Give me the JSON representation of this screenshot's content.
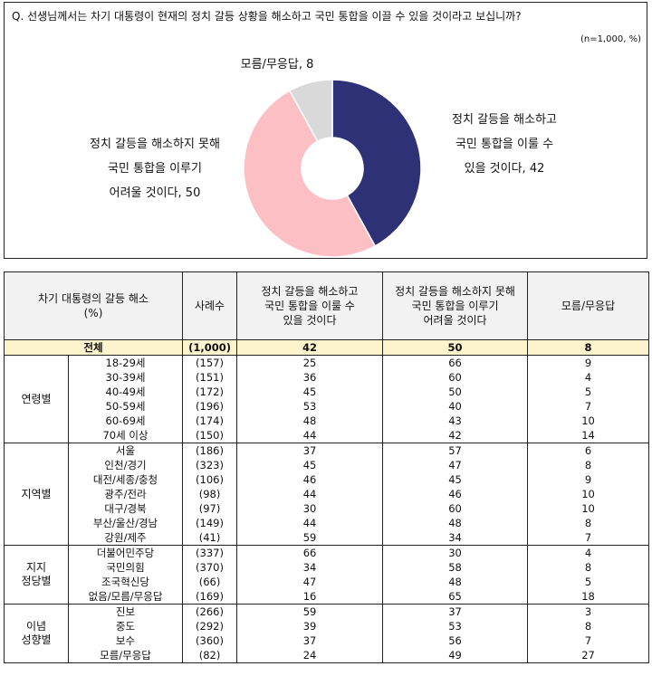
{
  "question": "Q. 선생님께서는 차기 대통령이 현재의 정치 갈등 상황을 해소하고 국민 통합을 이끌 수 있을 것이라고 보십니까?",
  "sample_note": "(n=1,000,  %)",
  "chart_data": {
    "type": "pie",
    "title": "",
    "slices": [
      {
        "label": "정치 갈등을 해소하고 국민 통합을 이룰 수 있을 것이다",
        "label_lines": [
          "정치 갈등을 해소하고",
          "국민 통합을 이룰 수",
          "있을 것이다, 42"
        ],
        "value": 42,
        "color": "#2e3175"
      },
      {
        "label": "정치 갈등을 해소하지 못해 국민 통합을 이루기 어려울 것이다",
        "label_lines": [
          "정치 갈등을 해소하지 못해",
          "국민 통합을 이루기",
          "어려울 것이다, 50"
        ],
        "value": 50,
        "color": "#fcbfc4"
      },
      {
        "label": "모름/무응답",
        "label_lines": [
          "모름/무응답, 8"
        ],
        "value": 8,
        "color": "#d9d9d9"
      }
    ]
  },
  "table": {
    "headers": [
      "차기 대통령의 갈등 해소\n(%)",
      "사례수",
      "정치 갈등을 해소하고\n국민 통합을 이룰 수\n있을 것이다",
      "정치 갈등을 해소하지 못해\n국민 통합을 이루기\n어려울 것이다",
      "모름/무응답"
    ],
    "total": {
      "label": "전체",
      "n": "(1,000)",
      "values": [
        "42",
        "50",
        "8"
      ]
    },
    "groups": [
      {
        "name": "연령별",
        "rows": [
          {
            "label": "18-29세",
            "n": "(157)",
            "values": [
              "25",
              "66",
              "9"
            ]
          },
          {
            "label": "30-39세",
            "n": "(151)",
            "values": [
              "36",
              "60",
              "4"
            ]
          },
          {
            "label": "40-49세",
            "n": "(172)",
            "values": [
              "45",
              "50",
              "5"
            ]
          },
          {
            "label": "50-59세",
            "n": "(196)",
            "values": [
              "53",
              "40",
              "7"
            ]
          },
          {
            "label": "60-69세",
            "n": "(174)",
            "values": [
              "48",
              "43",
              "10"
            ]
          },
          {
            "label": "70세 이상",
            "n": "(150)",
            "values": [
              "44",
              "42",
              "14"
            ]
          }
        ]
      },
      {
        "name": "지역별",
        "rows": [
          {
            "label": "서울",
            "n": "(186)",
            "values": [
              "37",
              "57",
              "6"
            ]
          },
          {
            "label": "인천/경기",
            "n": "(323)",
            "values": [
              "45",
              "47",
              "8"
            ]
          },
          {
            "label": "대전/세종/충청",
            "n": "(106)",
            "values": [
              "46",
              "45",
              "9"
            ]
          },
          {
            "label": "광주/전라",
            "n": "(98)",
            "values": [
              "44",
              "46",
              "10"
            ]
          },
          {
            "label": "대구/경북",
            "n": "(97)",
            "values": [
              "30",
              "60",
              "10"
            ]
          },
          {
            "label": "부산/울산/경남",
            "n": "(149)",
            "values": [
              "44",
              "48",
              "8"
            ]
          },
          {
            "label": "강원/제주",
            "n": "(41)",
            "values": [
              "59",
              "34",
              "7"
            ]
          }
        ]
      },
      {
        "name": "지지\n정당별",
        "rows": [
          {
            "label": "더불어민주당",
            "n": "(337)",
            "values": [
              "66",
              "30",
              "4"
            ]
          },
          {
            "label": "국민의힘",
            "n": "(370)",
            "values": [
              "34",
              "58",
              "8"
            ]
          },
          {
            "label": "조국혁신당",
            "n": "(66)",
            "values": [
              "47",
              "48",
              "5"
            ]
          },
          {
            "label": "없음/모름/무응답",
            "n": "(169)",
            "values": [
              "16",
              "65",
              "18"
            ]
          }
        ]
      },
      {
        "name": "이념\n성향별",
        "rows": [
          {
            "label": "진보",
            "n": "(266)",
            "values": [
              "59",
              "37",
              "3"
            ]
          },
          {
            "label": "중도",
            "n": "(292)",
            "values": [
              "39",
              "53",
              "8"
            ]
          },
          {
            "label": "보수",
            "n": "(360)",
            "values": [
              "37",
              "56",
              "7"
            ]
          },
          {
            "label": "모름/무응답",
            "n": "(82)",
            "values": [
              "24",
              "49",
              "27"
            ]
          }
        ]
      }
    ]
  }
}
